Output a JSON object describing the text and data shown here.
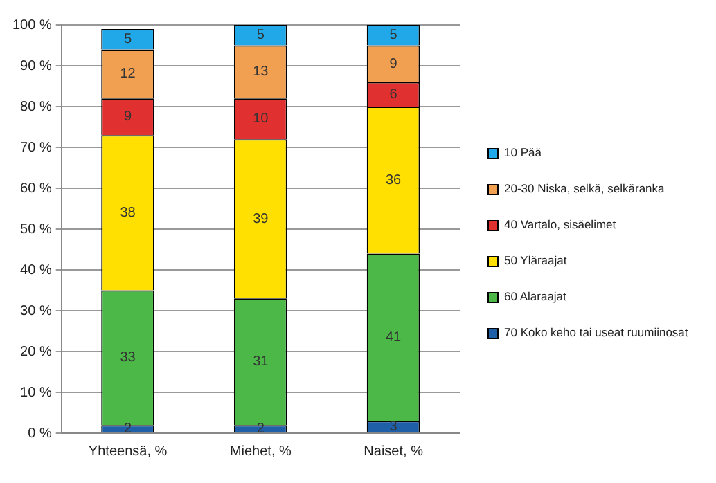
{
  "chart_data": {
    "type": "bar",
    "stacked": true,
    "categories": [
      "Yhteensä, %",
      "Miehet, %",
      "Naiset, %"
    ],
    "series": [
      {
        "name": "70 Koko keho tai useat ruumiinosat",
        "color": "#1f5fa8",
        "values": [
          2,
          2,
          3
        ]
      },
      {
        "name": "60 Alaraajat",
        "color": "#4cb848",
        "values": [
          33,
          31,
          41
        ]
      },
      {
        "name": "50 Yläraajat",
        "color": "#ffe000",
        "values": [
          38,
          39,
          36
        ]
      },
      {
        "name": "40 Vartalo, sisäelimet",
        "color": "#e03030",
        "values": [
          9,
          10,
          6
        ]
      },
      {
        "name": "20-30 Niska, selkä, selkäranka",
        "color": "#f0a050",
        "values": [
          12,
          13,
          9
        ]
      },
      {
        "name": "10 Pää",
        "color": "#20a8e8",
        "values": [
          5,
          5,
          5
        ]
      }
    ],
    "ylim": [
      0,
      100
    ],
    "yticks": [
      {
        "value": 0,
        "label": "0 %"
      },
      {
        "value": 10,
        "label": "10 %"
      },
      {
        "value": 20,
        "label": "20 %"
      },
      {
        "value": 30,
        "label": "30 %"
      },
      {
        "value": 40,
        "label": "40 %"
      },
      {
        "value": 50,
        "label": "50 %"
      },
      {
        "value": 60,
        "label": "60 %"
      },
      {
        "value": 70,
        "label": "70 %"
      },
      {
        "value": 80,
        "label": "80 %"
      },
      {
        "value": 90,
        "label": "90 %"
      },
      {
        "value": 100,
        "label": "100 %"
      }
    ],
    "grid": "y",
    "legend": "right",
    "data_labels": true
  }
}
